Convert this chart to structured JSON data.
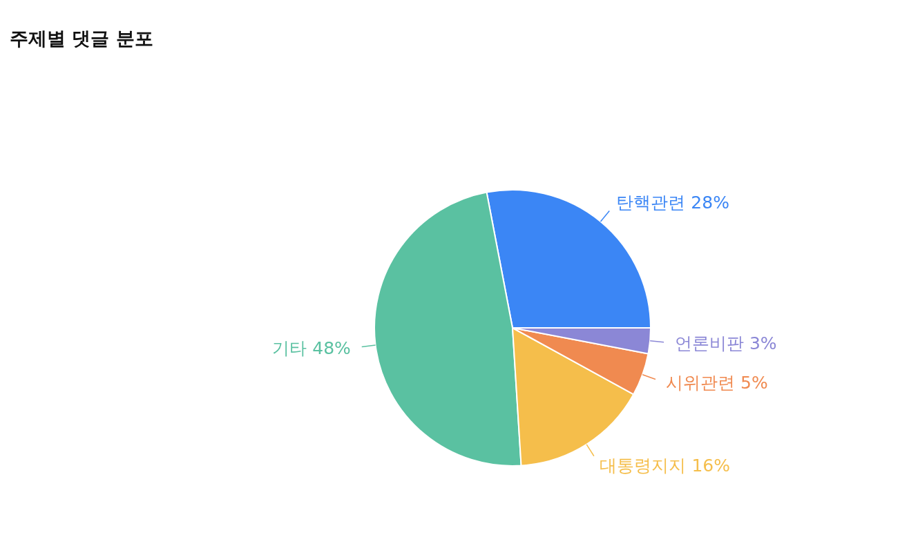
{
  "chart_data": {
    "type": "pie",
    "title": "주제별 댓글 분포",
    "categories": [
      "탄핵관련",
      "기타",
      "대통령지지",
      "시위관련",
      "언론비판"
    ],
    "values": [
      28,
      48,
      16,
      5,
      3
    ],
    "value_labels": [
      "28%",
      "48%",
      "16%",
      "5%",
      "3%"
    ],
    "colors": [
      "#3b86f5",
      "#5ac1a1",
      "#f5be4b",
      "#f08a50",
      "#8b87d6"
    ]
  }
}
